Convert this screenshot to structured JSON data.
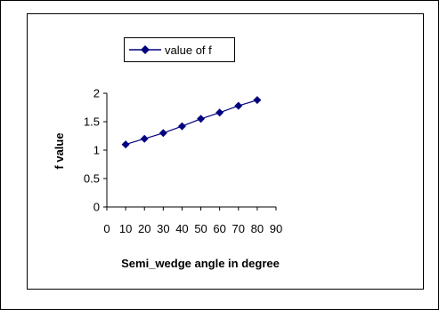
{
  "chart_data": {
    "type": "line",
    "title": "",
    "xlabel": "Semi_wedge angle in degree",
    "ylabel": "f value",
    "xlim": [
      0,
      90
    ],
    "ylim": [
      0,
      2
    ],
    "xticks": [
      "0",
      "10",
      "20",
      "30",
      "40",
      "50",
      "60",
      "70",
      "80",
      "90"
    ],
    "yticks": [
      "0",
      "0.5",
      "1",
      "1.5",
      "2"
    ],
    "grid": false,
    "legend_position": "top-left",
    "series": [
      {
        "name": "value of f",
        "color": "#000080",
        "marker": "diamond",
        "x": [
          10,
          20,
          30,
          40,
          50,
          60,
          70,
          80
        ],
        "values": [
          1.1,
          1.2,
          1.3,
          1.42,
          1.55,
          1.66,
          1.78,
          1.88
        ]
      }
    ]
  }
}
